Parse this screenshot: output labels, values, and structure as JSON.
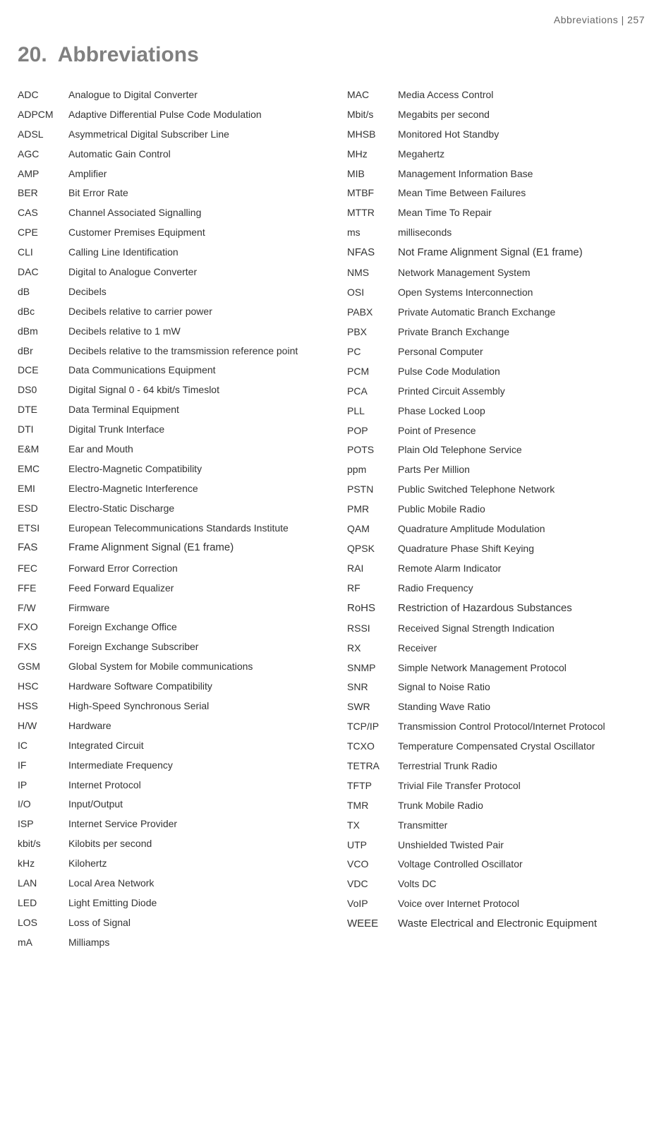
{
  "header": {
    "breadcrumb": "Abbreviations  |  257"
  },
  "chapter": {
    "number": "20.",
    "title": "Abbreviations"
  },
  "columns": {
    "left": [
      {
        "abbr": "ADC",
        "def": "Analogue to Digital Converter"
      },
      {
        "abbr": "ADPCM",
        "def": "Adaptive Differential Pulse Code Modulation"
      },
      {
        "abbr": "ADSL",
        "def": "Asymmetrical Digital Subscriber Line"
      },
      {
        "abbr": "AGC",
        "def": "Automatic Gain Control"
      },
      {
        "abbr": "AMP",
        "def": "Amplifier"
      },
      {
        "abbr": "BER",
        "def": "Bit Error Rate"
      },
      {
        "abbr": "CAS",
        "def": "Channel Associated Signalling"
      },
      {
        "abbr": "CPE",
        "def": "Customer Premises Equipment"
      },
      {
        "abbr": "CLI",
        "def": "Calling Line Identification"
      },
      {
        "abbr": "DAC",
        "def": "Digital to Analogue Converter"
      },
      {
        "abbr": "dB",
        "def": "Decibels"
      },
      {
        "abbr": "dBc",
        "def": "Decibels relative to carrier power"
      },
      {
        "abbr": "dBm",
        "def": "Decibels relative to 1 mW"
      },
      {
        "abbr": "dBr",
        "def": "Decibels relative to the tramsmission reference point"
      },
      {
        "abbr": "DCE",
        "def": "Data Communications Equipment"
      },
      {
        "abbr": "DS0",
        "def": "Digital Signal 0 - 64 kbit/s Timeslot"
      },
      {
        "abbr": "DTE",
        "def": "Data Terminal Equipment"
      },
      {
        "abbr": "DTI",
        "def": "Digital Trunk Interface"
      },
      {
        "abbr": "E&M",
        "def": "Ear and Mouth"
      },
      {
        "abbr": "EMC",
        "def": "Electro-Magnetic Compatibility"
      },
      {
        "abbr": "EMI",
        "def": "Electro-Magnetic Interference"
      },
      {
        "abbr": "ESD",
        "def": "Electro-Static Discharge"
      },
      {
        "abbr": "ETSI",
        "def": "European Telecommunications Standards Institute"
      },
      {
        "abbr": "FAS",
        "def": "Frame Alignment Signal (E1 frame)",
        "emphasized": true
      },
      {
        "abbr": "FEC",
        "def": "Forward Error Correction"
      },
      {
        "abbr": "FFE",
        "def": "Feed Forward Equalizer"
      },
      {
        "abbr": "F/W",
        "def": "Firmware"
      },
      {
        "abbr": "FXO",
        "def": "Foreign Exchange Office"
      },
      {
        "abbr": "FXS",
        "def": "Foreign Exchange Subscriber"
      },
      {
        "abbr": "GSM",
        "def": "Global System for Mobile communications"
      },
      {
        "abbr": "HSC",
        "def": "Hardware Software Compatibility"
      },
      {
        "abbr": "HSS",
        "def": "High-Speed Synchronous Serial"
      },
      {
        "abbr": "H/W",
        "def": "Hardware"
      },
      {
        "abbr": "IC",
        "def": "Integrated Circuit"
      },
      {
        "abbr": "IF",
        "def": "Intermediate Frequency"
      },
      {
        "abbr": "IP",
        "def": "Internet Protocol"
      },
      {
        "abbr": "I/O",
        "def": "Input/Output"
      },
      {
        "abbr": "ISP",
        "def": "Internet Service Provider"
      },
      {
        "abbr": "kbit/s",
        "def": "Kilobits per second"
      },
      {
        "abbr": "kHz",
        "def": "Kilohertz"
      },
      {
        "abbr": "LAN",
        "def": "Local Area Network"
      },
      {
        "abbr": "LED",
        "def": "Light Emitting Diode"
      },
      {
        "abbr": "LOS",
        "def": "Loss of Signal"
      },
      {
        "abbr": "mA",
        "def": "Milliamps"
      }
    ],
    "right": [
      {
        "abbr": "MAC",
        "def": "Media Access Control"
      },
      {
        "abbr": "Mbit/s",
        "def": "Megabits per second"
      },
      {
        "abbr": "MHSB",
        "def": "Monitored Hot Standby"
      },
      {
        "abbr": "MHz",
        "def": "Megahertz"
      },
      {
        "abbr": "MIB",
        "def": "Management Information Base"
      },
      {
        "abbr": "MTBF",
        "def": "Mean Time Between Failures"
      },
      {
        "abbr": "MTTR",
        "def": "Mean Time To Repair"
      },
      {
        "abbr": "ms",
        "def": "milliseconds"
      },
      {
        "abbr": "NFAS",
        "def": "Not Frame Alignment Signal (E1 frame)",
        "emphasized": true
      },
      {
        "abbr": "NMS",
        "def": "Network Management System"
      },
      {
        "abbr": "OSI",
        "def": "Open Systems Interconnection"
      },
      {
        "abbr": "PABX",
        "def": "Private Automatic Branch Exchange"
      },
      {
        "abbr": "PBX",
        "def": "Private Branch Exchange"
      },
      {
        "abbr": "PC",
        "def": "Personal Computer"
      },
      {
        "abbr": "PCM",
        "def": "Pulse Code Modulation"
      },
      {
        "abbr": "PCA",
        "def": "Printed Circuit Assembly"
      },
      {
        "abbr": "PLL",
        "def": "Phase Locked Loop"
      },
      {
        "abbr": "POP",
        "def": "Point of Presence"
      },
      {
        "abbr": "POTS",
        "def": "Plain Old Telephone Service"
      },
      {
        "abbr": "ppm",
        "def": "Parts Per Million"
      },
      {
        "abbr": "PSTN",
        "def": "Public Switched Telephone Network"
      },
      {
        "abbr": "PMR",
        "def": "Public Mobile Radio"
      },
      {
        "abbr": "QAM",
        "def": "Quadrature Amplitude Modulation"
      },
      {
        "abbr": "QPSK",
        "def": "Quadrature Phase Shift Keying"
      },
      {
        "abbr": "RAI",
        "def": "Remote Alarm Indicator"
      },
      {
        "abbr": "RF",
        "def": "Radio Frequency"
      },
      {
        "abbr": "RoHS",
        "def": "Restriction of Hazardous Substances",
        "emphasized": true
      },
      {
        "abbr": "RSSI",
        "def": "Received Signal Strength Indication"
      },
      {
        "abbr": "RX",
        "def": "Receiver"
      },
      {
        "abbr": "SNMP",
        "def": "Simple Network Management Protocol"
      },
      {
        "abbr": "SNR",
        "def": "Signal to Noise Ratio"
      },
      {
        "abbr": "SWR",
        "def": "Standing Wave Ratio"
      },
      {
        "abbr": "TCP/IP",
        "def": "Transmission Control Protocol/Internet Protocol"
      },
      {
        "abbr": "TCXO",
        "def": "Temperature Compensated Crystal Oscillator"
      },
      {
        "abbr": "TETRA",
        "def": "Terrestrial Trunk Radio"
      },
      {
        "abbr": "TFTP",
        "def": "Trivial File Transfer Protocol"
      },
      {
        "abbr": "TMR",
        "def": "Trunk Mobile Radio"
      },
      {
        "abbr": "TX",
        "def": "Transmitter"
      },
      {
        "abbr": "UTP",
        "def": "Unshielded Twisted Pair"
      },
      {
        "abbr": "VCO",
        "def": "Voltage Controlled Oscillator"
      },
      {
        "abbr": "VDC",
        "def": "Volts DC"
      },
      {
        "abbr": "VoIP",
        "def": "Voice over Internet Protocol"
      },
      {
        "abbr": "WEEE",
        "def": "Waste Electrical and Electronic Equipment",
        "emphasized": true
      }
    ]
  }
}
